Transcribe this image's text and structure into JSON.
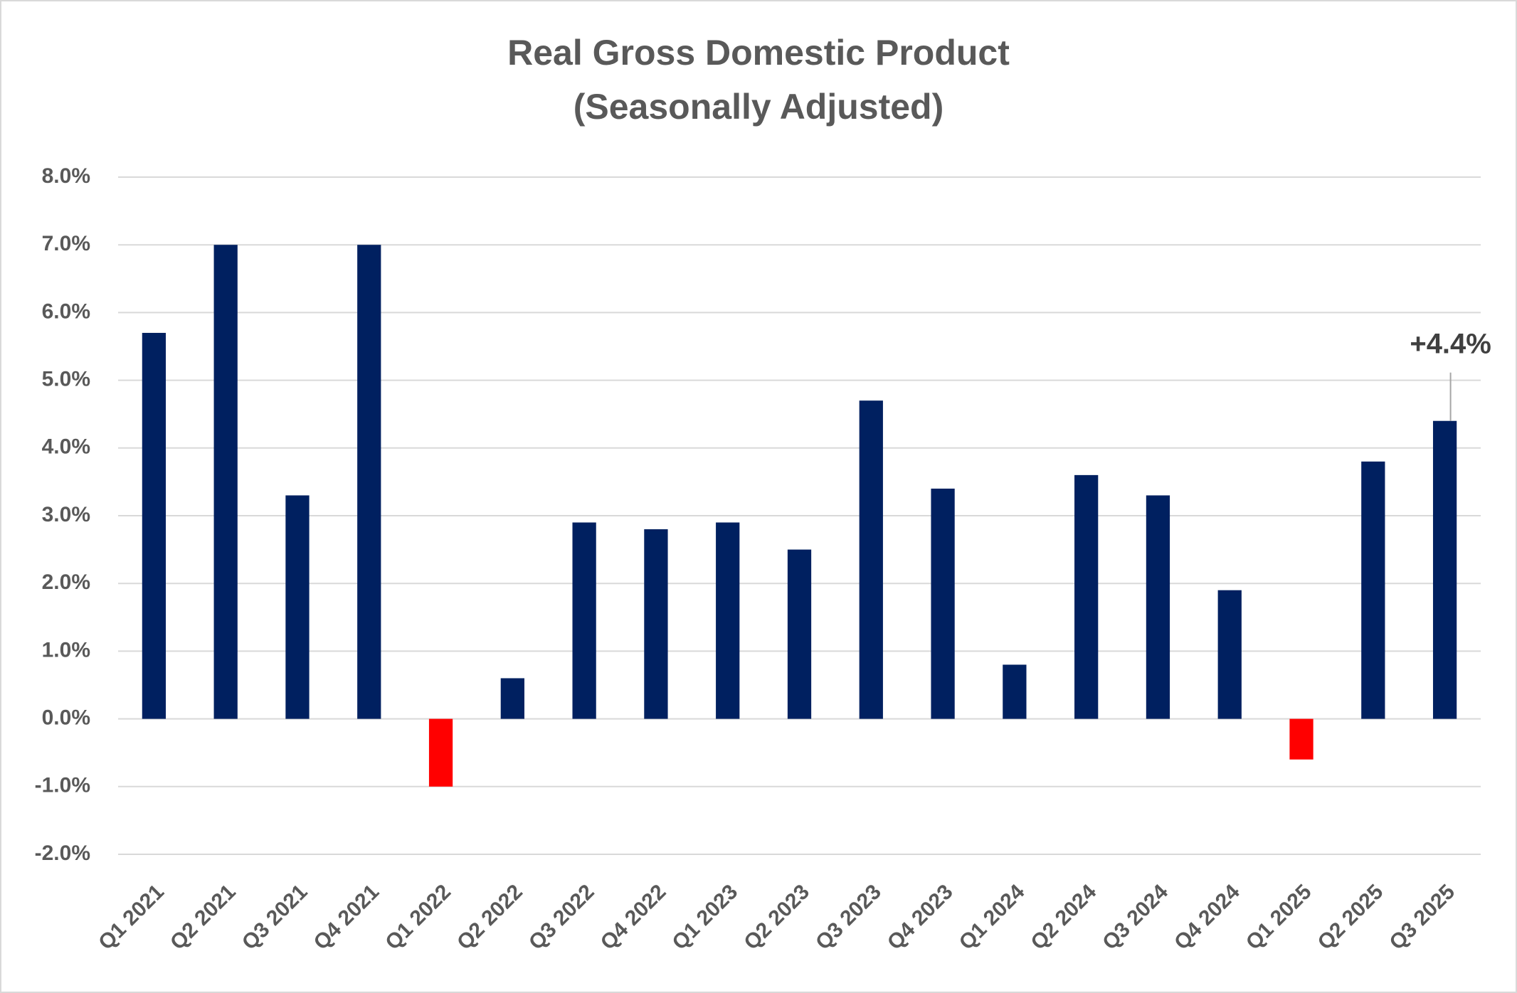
{
  "chart_data": {
    "type": "bar",
    "title": "Real Gross Domestic Product",
    "subtitle": "(Seasonally Adjusted)",
    "categories": [
      "Q1 2021",
      "Q2 2021",
      "Q3 2021",
      "Q4 2021",
      "Q1 2022",
      "Q2 2022",
      "Q3 2022",
      "Q4 2022",
      "Q1 2023",
      "Q2 2023",
      "Q3 2023",
      "Q4 2023",
      "Q1 2024",
      "Q2 2024",
      "Q3 2024",
      "Q4 2024",
      "Q1 2025",
      "Q2 2025",
      "Q3 2025"
    ],
    "values": [
      5.7,
      7.0,
      3.3,
      7.0,
      -1.0,
      0.6,
      2.9,
      2.8,
      2.9,
      2.5,
      4.7,
      3.4,
      0.8,
      3.6,
      3.3,
      1.9,
      -0.6,
      3.8,
      4.4
    ],
    "value_labels": [
      null,
      null,
      null,
      null,
      null,
      null,
      null,
      null,
      null,
      null,
      null,
      null,
      null,
      null,
      null,
      null,
      null,
      null,
      "+4.4%"
    ],
    "color": "#002060",
    "negative_color": "#ff0000",
    "ylim": [
      -2,
      8
    ],
    "yticks": [
      {
        "value": -2,
        "label": "-2.0%"
      },
      {
        "value": -1,
        "label": "-1.0%"
      },
      {
        "value": 0,
        "label": "0.0%"
      },
      {
        "value": 1,
        "label": "1.0%"
      },
      {
        "value": 2,
        "label": "2.0%"
      },
      {
        "value": 3,
        "label": "3.0%"
      },
      {
        "value": 4,
        "label": "4.0%"
      },
      {
        "value": 5,
        "label": "5.0%"
      },
      {
        "value": 6,
        "label": "6.0%"
      },
      {
        "value": 7,
        "label": "7.0%"
      },
      {
        "value": 8,
        "label": "8.0%"
      }
    ],
    "grid": true
  }
}
